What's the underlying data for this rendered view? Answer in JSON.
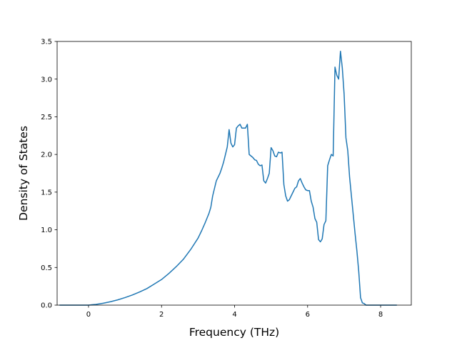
{
  "chart_data": {
    "type": "line",
    "title": "",
    "xlabel": "Frequency (THz)",
    "ylabel": "Density of States",
    "xlim": [
      -0.86,
      8.84
    ],
    "ylim": [
      0.0,
      3.5
    ],
    "x_ticks": [
      0,
      2,
      4,
      6,
      8
    ],
    "y_ticks": [
      0.0,
      0.5,
      1.0,
      1.5,
      2.0,
      2.5,
      3.0,
      3.5
    ],
    "grid": false,
    "legend": false,
    "series": [
      {
        "color": "#1f77b4",
        "x": [
          -0.78,
          -0.4,
          0.0,
          0.2,
          0.4,
          0.6,
          0.8,
          1.0,
          1.2,
          1.4,
          1.6,
          1.8,
          2.0,
          2.2,
          2.4,
          2.6,
          2.8,
          3.0,
          3.1,
          3.2,
          3.3,
          3.35,
          3.4,
          3.5,
          3.6,
          3.65,
          3.7,
          3.75,
          3.8,
          3.85,
          3.9,
          3.95,
          4.0,
          4.05,
          4.1,
          4.15,
          4.2,
          4.3,
          4.35,
          4.4,
          4.45,
          4.5,
          4.55,
          4.6,
          4.65,
          4.7,
          4.75,
          4.8,
          4.85,
          4.9,
          4.95,
          5.0,
          5.05,
          5.1,
          5.15,
          5.2,
          5.25,
          5.3,
          5.35,
          5.4,
          5.45,
          5.5,
          5.55,
          5.6,
          5.65,
          5.7,
          5.75,
          5.8,
          5.85,
          5.9,
          5.95,
          6.0,
          6.05,
          6.1,
          6.15,
          6.2,
          6.25,
          6.3,
          6.35,
          6.4,
          6.45,
          6.5,
          6.55,
          6.6,
          6.65,
          6.7,
          6.75,
          6.8,
          6.85,
          6.9,
          6.95,
          7.0,
          7.05,
          7.1,
          7.15,
          7.2,
          7.25,
          7.3,
          7.35,
          7.4,
          7.45,
          7.5,
          7.55,
          7.6,
          7.62,
          7.65,
          7.7,
          7.8,
          8.0,
          8.2,
          8.43
        ],
        "y": [
          0.0,
          0.0,
          0.0,
          0.01,
          0.025,
          0.045,
          0.07,
          0.1,
          0.135,
          0.175,
          0.22,
          0.28,
          0.34,
          0.42,
          0.51,
          0.61,
          0.74,
          0.89,
          0.99,
          1.1,
          1.22,
          1.3,
          1.45,
          1.65,
          1.75,
          1.82,
          1.9,
          2.0,
          2.1,
          2.33,
          2.15,
          2.1,
          2.13,
          2.35,
          2.38,
          2.4,
          2.35,
          2.35,
          2.4,
          2.0,
          1.98,
          1.96,
          1.93,
          1.92,
          1.87,
          1.85,
          1.86,
          1.65,
          1.62,
          1.68,
          1.75,
          2.09,
          2.05,
          1.98,
          1.97,
          2.03,
          2.02,
          2.03,
          1.6,
          1.45,
          1.38,
          1.4,
          1.45,
          1.5,
          1.55,
          1.57,
          1.65,
          1.68,
          1.62,
          1.57,
          1.53,
          1.52,
          1.52,
          1.38,
          1.3,
          1.15,
          1.1,
          0.87,
          0.84,
          0.88,
          1.07,
          1.12,
          1.85,
          1.93,
          2.0,
          1.98,
          3.16,
          3.05,
          3.0,
          3.37,
          3.15,
          2.8,
          2.22,
          2.05,
          1.7,
          1.45,
          1.2,
          0.95,
          0.72,
          0.45,
          0.1,
          0.03,
          0.02,
          0.0,
          0.0,
          0.0,
          0.0,
          0.0,
          0.0,
          0.0,
          0.0
        ]
      }
    ]
  }
}
